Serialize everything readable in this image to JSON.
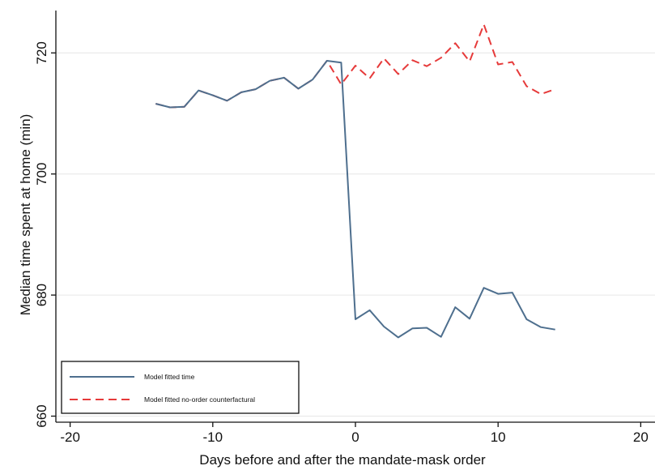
{
  "chart_data": {
    "type": "line",
    "title": "",
    "xlabel": "Days before and after the mandate-mask order",
    "ylabel": "Median time spent at home (min)",
    "xlim": [
      -21,
      21
    ],
    "ylim": [
      659,
      727
    ],
    "x_ticks": [
      -20,
      -10,
      0,
      10,
      20
    ],
    "y_ticks": [
      660,
      680,
      700,
      720
    ],
    "x_tick_labels": [
      "-20",
      "-10",
      "0",
      "10",
      "20"
    ],
    "y_tick_labels": [
      "660",
      "680",
      "700",
      "720"
    ],
    "grid": "horizontal",
    "legend_position": "bottom-left",
    "series": [
      {
        "name": "Model fitted time",
        "color": "#4e6f8e",
        "style": "solid",
        "x": [
          -14,
          -13,
          -12,
          -11,
          -10,
          -9,
          -8,
          -7,
          -6,
          -5,
          -4,
          -3,
          -2,
          -1,
          0,
          1,
          2,
          3,
          4,
          5,
          6,
          7,
          8,
          9,
          10,
          11,
          12,
          13,
          14
        ],
        "y": [
          711.6,
          711.0,
          711.1,
          713.8,
          713.0,
          712.1,
          713.5,
          714.0,
          715.4,
          715.9,
          714.1,
          715.6,
          718.7,
          718.4,
          676.0,
          677.5,
          674.8,
          673.0,
          674.5,
          674.6,
          673.1,
          678.0,
          676.1,
          681.2,
          680.2,
          680.4,
          676.0,
          674.7,
          674.3
        ]
      },
      {
        "name": "Model fitted no-order counterfactural",
        "color": "#e63a3a",
        "style": "dashed",
        "x": [
          -14,
          -13,
          -12,
          -11,
          -10,
          -9,
          -8,
          -7,
          -6,
          -5,
          -4,
          -3,
          -2,
          -1,
          0,
          1,
          2,
          3,
          4,
          5,
          6,
          7,
          8,
          9,
          10,
          11,
          12,
          13,
          14
        ],
        "y": [
          711.6,
          711.0,
          711.1,
          713.8,
          713.0,
          712.1,
          713.5,
          714.0,
          715.4,
          715.9,
          714.1,
          715.6,
          718.7,
          714.8,
          717.9,
          715.8,
          719.1,
          716.5,
          718.8,
          717.8,
          719.2,
          721.6,
          718.6,
          724.7,
          718.1,
          718.5,
          714.5,
          713.2,
          714.0
        ]
      }
    ]
  }
}
